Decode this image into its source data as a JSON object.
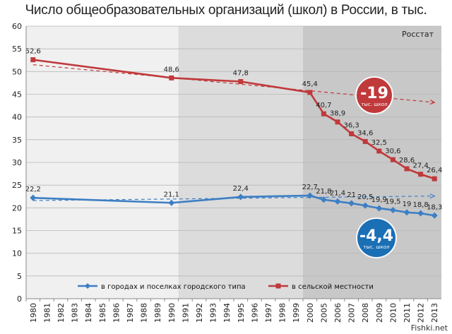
{
  "chart_data": {
    "type": "line",
    "title": "Число общеобразовательных организаций (школ) в России, в тыс.",
    "source": "Росстат",
    "categories": [
      "1980",
      "1981",
      "1982",
      "1983",
      "1984",
      "1985",
      "1986",
      "1987",
      "1988",
      "1989",
      "1990",
      "1991",
      "1992",
      "1993",
      "1994",
      "1995",
      "1996",
      "1997",
      "1998",
      "1999",
      "2000",
      "2005",
      "2006",
      "2007",
      "2008",
      "2009",
      "2010",
      "2011",
      "2012",
      "2013"
    ],
    "ylim": [
      0,
      60
    ],
    "yticks": [
      0,
      5,
      10,
      15,
      20,
      25,
      30,
      35,
      40,
      45,
      50,
      55,
      60
    ],
    "grid": true,
    "legend_position": "bottom",
    "series": [
      {
        "name": "в городах и поселках городского типа",
        "color": "#3d7fc4",
        "points": [
          {
            "x": "1980",
            "y": 22.2,
            "label": "22,2"
          },
          {
            "x": "1990",
            "y": 21.1,
            "label": "21,1"
          },
          {
            "x": "1995",
            "y": 22.4,
            "label": "22,4"
          },
          {
            "x": "2000",
            "y": 22.7,
            "label": "22,7"
          },
          {
            "x": "2005",
            "y": 21.8,
            "label": "21,8"
          },
          {
            "x": "2006",
            "y": 21.4,
            "label": "21,4"
          },
          {
            "x": "2007",
            "y": 21,
            "label": "21"
          },
          {
            "x": "2008",
            "y": 20.5,
            "label": "20,5"
          },
          {
            "x": "2009",
            "y": 19.9,
            "label": "19,9"
          },
          {
            "x": "2010",
            "y": 19.5,
            "label": "19,5"
          },
          {
            "x": "2011",
            "y": 19,
            "label": "19"
          },
          {
            "x": "2012",
            "y": 18.8,
            "label": "18,8"
          },
          {
            "x": "2013",
            "y": 18.3,
            "label": "18,3"
          }
        ],
        "trend": {
          "from": {
            "x": "1980",
            "y": 21.6
          },
          "to": {
            "x": "2013",
            "y": 22.6
          }
        },
        "badge": {
          "value": "-4,4",
          "caption": "тыс. школ",
          "color": "#1a6fb5"
        }
      },
      {
        "name": "в сельской местности",
        "color": "#c0393b",
        "points": [
          {
            "x": "1980",
            "y": 52.6,
            "label": "52,6"
          },
          {
            "x": "1990",
            "y": 48.6,
            "label": "48,6"
          },
          {
            "x": "1995",
            "y": 47.8,
            "label": "47,8"
          },
          {
            "x": "2000",
            "y": 45.4,
            "label": "45,4"
          },
          {
            "x": "2005",
            "y": 40.7,
            "label": "40,7"
          },
          {
            "x": "2006",
            "y": 38.9,
            "label": "38,9"
          },
          {
            "x": "2007",
            "y": 36.3,
            "label": "36,3"
          },
          {
            "x": "2008",
            "y": 34.6,
            "label": "34,6"
          },
          {
            "x": "2009",
            "y": 32.5,
            "label": "32,5"
          },
          {
            "x": "2010",
            "y": 30.6,
            "label": "30,6"
          },
          {
            "x": "2011",
            "y": 28.6,
            "label": "28,6"
          },
          {
            "x": "2012",
            "y": 27.4,
            "label": "27,4"
          },
          {
            "x": "2013",
            "y": 26.4,
            "label": "26,4"
          }
        ],
        "trend": {
          "from": {
            "x": "1980",
            "y": 51.5
          },
          "to": {
            "x": "2013",
            "y": 43.2
          }
        },
        "badge": {
          "value": "-19",
          "caption": "тыс. школ",
          "color": "#c0393b"
        }
      }
    ],
    "shaded_periods": [
      {
        "from": "1980",
        "to": "1991",
        "color": "#f0f0f0"
      },
      {
        "from": "1991",
        "to": "2000",
        "color": "#dcdcdc"
      },
      {
        "from": "2000",
        "to": "2013",
        "color": "#c8c8c8"
      }
    ]
  },
  "watermark": "Fishki.net"
}
